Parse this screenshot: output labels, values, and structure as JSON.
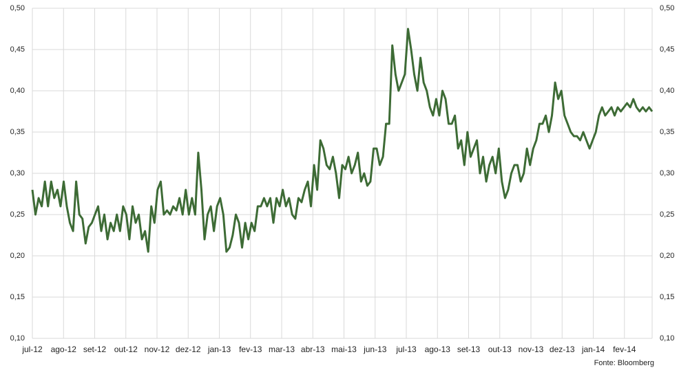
{
  "chart_data": {
    "type": "line",
    "source": "Fonte: Bloomberg",
    "x_labels": [
      "jul-12",
      "ago-12",
      "set-12",
      "out-12",
      "nov-12",
      "dez-12",
      "jan-13",
      "fev-13",
      "mar-13",
      "abr-13",
      "mai-13",
      "jun-13",
      "jul-13",
      "ago-13",
      "set-13",
      "out-13",
      "nov-13",
      "dez-13",
      "jan-14",
      "fev-14"
    ],
    "color": "#3d6b35",
    "grid": true,
    "ylim": [
      0.1,
      0.5
    ],
    "yticks": [
      {
        "value": 0.1,
        "label": "0,10"
      },
      {
        "value": 0.15,
        "label": "0,15"
      },
      {
        "value": 0.2,
        "label": "0,20"
      },
      {
        "value": 0.25,
        "label": "0,25"
      },
      {
        "value": 0.3,
        "label": "0,30"
      },
      {
        "value": 0.35,
        "label": "0,35"
      },
      {
        "value": 0.4,
        "label": "0,40"
      },
      {
        "value": 0.45,
        "label": "0,45"
      },
      {
        "value": 0.5,
        "label": "0,50"
      }
    ],
    "values": [
      0.28,
      0.25,
      0.27,
      0.26,
      0.29,
      0.26,
      0.29,
      0.27,
      0.28,
      0.26,
      0.29,
      0.26,
      0.24,
      0.23,
      0.29,
      0.25,
      0.245,
      0.215,
      0.235,
      0.24,
      0.25,
      0.26,
      0.23,
      0.25,
      0.22,
      0.24,
      0.23,
      0.25,
      0.23,
      0.26,
      0.25,
      0.22,
      0.26,
      0.24,
      0.25,
      0.22,
      0.23,
      0.205,
      0.26,
      0.24,
      0.28,
      0.29,
      0.25,
      0.255,
      0.25,
      0.26,
      0.255,
      0.27,
      0.25,
      0.28,
      0.25,
      0.27,
      0.25,
      0.325,
      0.28,
      0.22,
      0.25,
      0.26,
      0.23,
      0.26,
      0.27,
      0.25,
      0.205,
      0.21,
      0.225,
      0.25,
      0.24,
      0.21,
      0.24,
      0.22,
      0.24,
      0.23,
      0.26,
      0.26,
      0.27,
      0.26,
      0.27,
      0.24,
      0.27,
      0.26,
      0.28,
      0.26,
      0.27,
      0.25,
      0.245,
      0.27,
      0.265,
      0.28,
      0.29,
      0.26,
      0.31,
      0.28,
      0.34,
      0.33,
      0.31,
      0.305,
      0.32,
      0.3,
      0.27,
      0.31,
      0.305,
      0.32,
      0.3,
      0.31,
      0.325,
      0.29,
      0.3,
      0.285,
      0.29,
      0.33,
      0.33,
      0.31,
      0.32,
      0.36,
      0.36,
      0.455,
      0.42,
      0.4,
      0.41,
      0.42,
      0.475,
      0.45,
      0.42,
      0.4,
      0.44,
      0.41,
      0.4,
      0.38,
      0.37,
      0.39,
      0.37,
      0.4,
      0.39,
      0.36,
      0.36,
      0.37,
      0.33,
      0.34,
      0.31,
      0.35,
      0.32,
      0.33,
      0.34,
      0.3,
      0.32,
      0.29,
      0.31,
      0.32,
      0.3,
      0.33,
      0.29,
      0.27,
      0.28,
      0.3,
      0.31,
      0.31,
      0.29,
      0.3,
      0.33,
      0.31,
      0.33,
      0.34,
      0.36,
      0.36,
      0.37,
      0.35,
      0.37,
      0.41,
      0.39,
      0.4,
      0.37,
      0.36,
      0.35,
      0.345,
      0.345,
      0.34,
      0.35,
      0.34,
      0.33,
      0.34,
      0.35,
      0.37,
      0.38,
      0.37,
      0.375,
      0.38,
      0.37,
      0.38,
      0.375,
      0.38,
      0.385,
      0.38,
      0.39,
      0.38,
      0.375,
      0.38,
      0.375,
      0.38,
      0.375
    ]
  }
}
